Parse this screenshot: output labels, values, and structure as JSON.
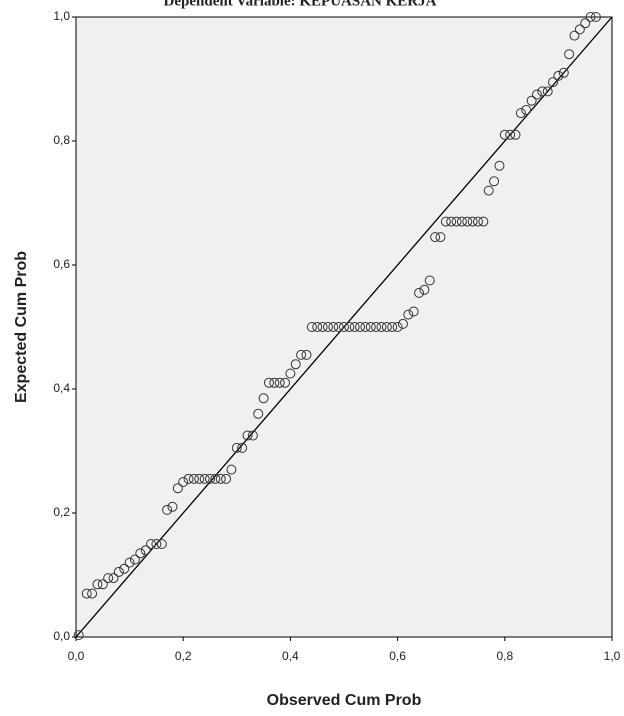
{
  "chart_data": {
    "type": "scatter",
    "title": "Dependent Variable: KEPUASAN KERJA",
    "x_label": "Observed Cum Prob",
    "y_label": "Expected Cum Prob",
    "xlim": [
      0,
      1
    ],
    "ylim": [
      0,
      1
    ],
    "xticks": [
      {
        "value": 0,
        "label": "0,0"
      },
      {
        "value": 0.2,
        "label": "0,2"
      },
      {
        "value": 0.4,
        "label": "0,4"
      },
      {
        "value": 0.6,
        "label": "0,6"
      },
      {
        "value": 0.8,
        "label": "0,8"
      },
      {
        "value": 1,
        "label": "1,0"
      }
    ],
    "yticks": [
      {
        "value": 0,
        "label": "0,0"
      },
      {
        "value": 0.2,
        "label": "0,2"
      },
      {
        "value": 0.4,
        "label": "0,4"
      },
      {
        "value": 0.6,
        "label": "0,6"
      },
      {
        "value": 0.8,
        "label": "0,8"
      },
      {
        "value": 1,
        "label": "1,0"
      }
    ],
    "color": "#333333",
    "x": [
      0.005,
      0.02,
      0.03,
      0.04,
      0.05,
      0.06,
      0.07,
      0.08,
      0.09,
      0.1,
      0.11,
      0.12,
      0.13,
      0.14,
      0.15,
      0.16,
      0.17,
      0.18,
      0.19,
      0.2,
      0.21,
      0.22,
      0.23,
      0.24,
      0.25,
      0.26,
      0.27,
      0.28,
      0.29,
      0.3,
      0.31,
      0.32,
      0.33,
      0.34,
      0.35,
      0.36,
      0.37,
      0.38,
      0.39,
      0.4,
      0.41,
      0.42,
      0.43,
      0.44,
      0.45,
      0.46,
      0.47,
      0.48,
      0.49,
      0.5,
      0.51,
      0.52,
      0.53,
      0.54,
      0.55,
      0.56,
      0.57,
      0.58,
      0.59,
      0.6,
      0.61,
      0.62,
      0.63,
      0.64,
      0.65,
      0.66,
      0.67,
      0.68,
      0.69,
      0.7,
      0.71,
      0.72,
      0.73,
      0.74,
      0.75,
      0.76,
      0.77,
      0.78,
      0.79,
      0.8,
      0.81,
      0.82,
      0.83,
      0.84,
      0.85,
      0.86,
      0.87,
      0.88,
      0.89,
      0.9,
      0.91,
      0.92,
      0.93,
      0.94,
      0.95,
      0.96,
      0.97
    ],
    "values": [
      0.003,
      0.07,
      0.07,
      0.085,
      0.085,
      0.095,
      0.095,
      0.105,
      0.11,
      0.12,
      0.125,
      0.135,
      0.14,
      0.15,
      0.15,
      0.15,
      0.205,
      0.21,
      0.24,
      0.25,
      0.255,
      0.255,
      0.255,
      0.255,
      0.255,
      0.255,
      0.255,
      0.255,
      0.27,
      0.305,
      0.305,
      0.325,
      0.325,
      0.36,
      0.385,
      0.41,
      0.41,
      0.41,
      0.41,
      0.425,
      0.44,
      0.455,
      0.455,
      0.5,
      0.5,
      0.5,
      0.5,
      0.5,
      0.5,
      0.5,
      0.5,
      0.5,
      0.5,
      0.5,
      0.5,
      0.5,
      0.5,
      0.5,
      0.5,
      0.5,
      0.505,
      0.52,
      0.525,
      0.555,
      0.56,
      0.575,
      0.645,
      0.645,
      0.67,
      0.67,
      0.67,
      0.67,
      0.67,
      0.67,
      0.67,
      0.67,
      0.72,
      0.735,
      0.76,
      0.81,
      0.81,
      0.81,
      0.845,
      0.85,
      0.865,
      0.875,
      0.88,
      0.88,
      0.895,
      0.905,
      0.91,
      0.94,
      0.97,
      0.98,
      0.99,
      1.0,
      1.0
    ]
  }
}
